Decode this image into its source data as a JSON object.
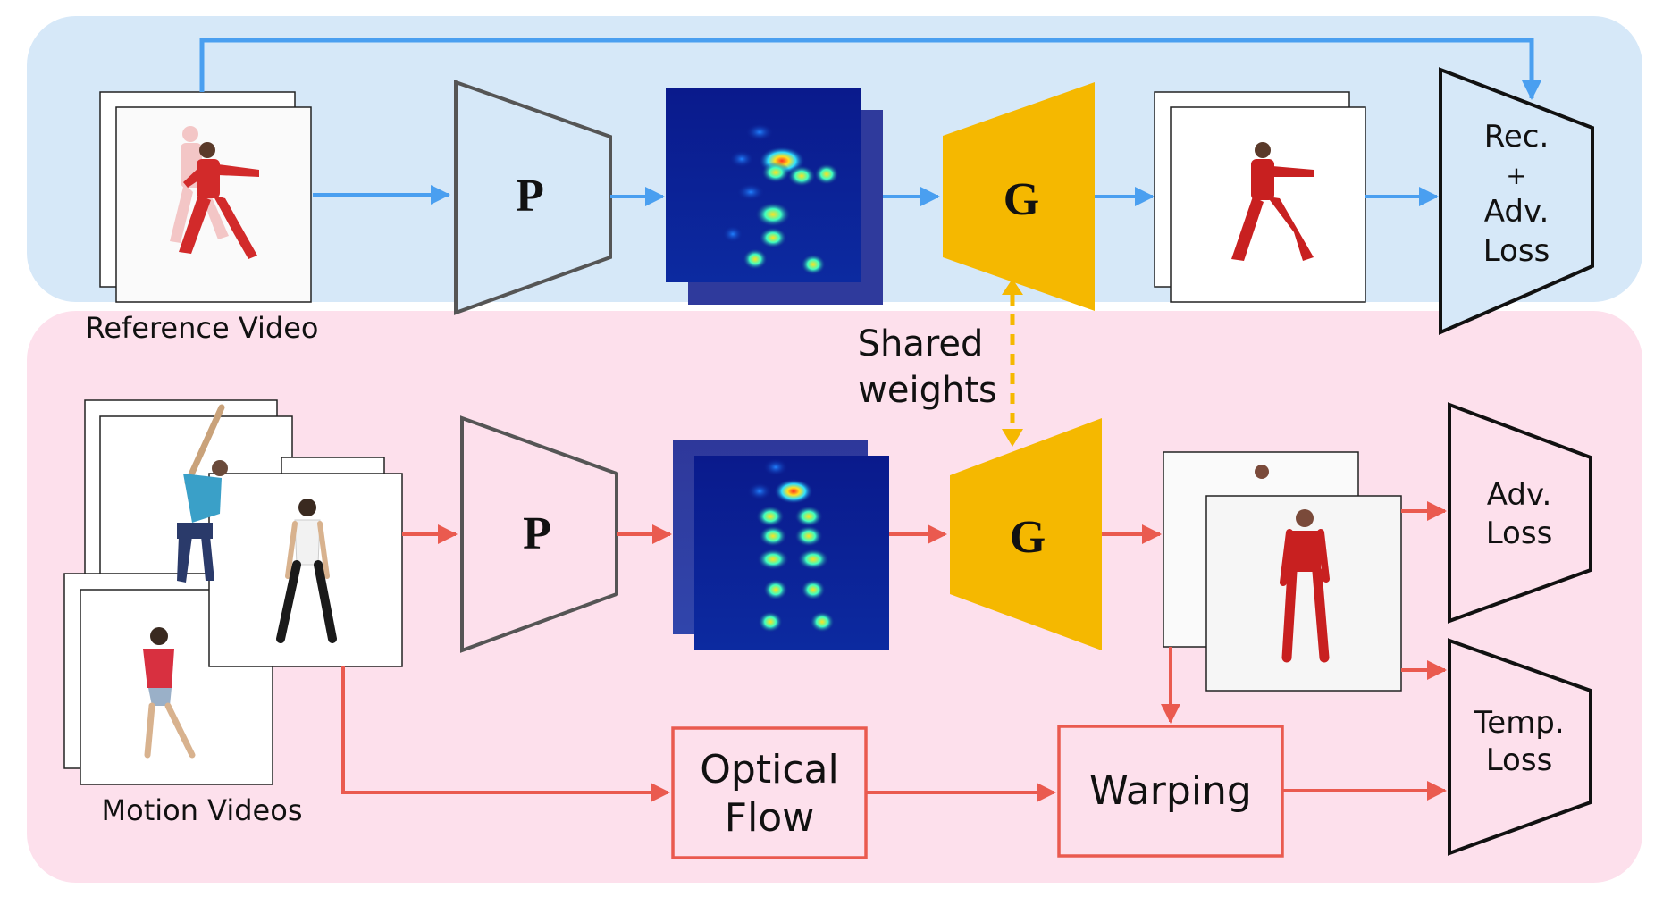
{
  "colors": {
    "top_panel": "#d6e8f8",
    "bottom_panel": "#fde0ec",
    "blue_arrow": "#4a9ff0",
    "red_arrow": "#ea5a4f",
    "generator": "#f5b800",
    "heatmap_bg": "#0a1a8c",
    "heatmap_back": "#2f3a9c",
    "dashed": "#f5b800"
  },
  "top": {
    "reference_label": "Reference Video",
    "p_label": "P",
    "g_label": "G",
    "loss_lines": [
      "Rec.",
      "+",
      "Adv.",
      "Loss"
    ]
  },
  "shared": {
    "line1": "Shared",
    "line2": "weights"
  },
  "bottom": {
    "motion_label": "Motion Videos",
    "p_label": "P",
    "g_label": "G",
    "adv_loss_lines": [
      "Adv.",
      "Loss"
    ],
    "temp_loss_lines": [
      "Temp.",
      "Loss"
    ],
    "optical_flow_lines": [
      "Optical",
      "Flow"
    ],
    "warping_label": "Warping"
  },
  "icons": {
    "reference_frame": "person-in-red-icon",
    "motion_frames": "dancer-icons",
    "heatmap": "pose-heatmap-icon",
    "output_frame": "generated-person-icon"
  }
}
